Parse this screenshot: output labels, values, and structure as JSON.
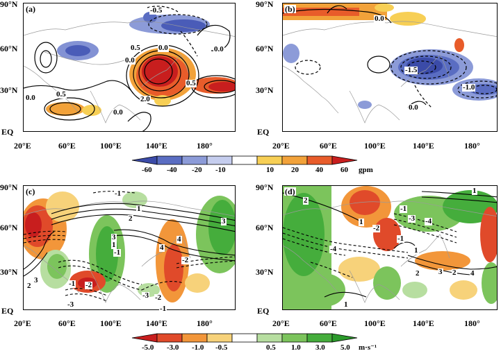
{
  "panels": [
    {
      "id": "a",
      "label": "(a)",
      "lat_ticks": [
        "90°N",
        "60°N",
        "30°N",
        "EQ"
      ],
      "lon_ticks": [
        "20°E",
        "60°E",
        "100°E",
        "140°E",
        "180°"
      ],
      "contour_labels": [
        "-0.5",
        "0.5",
        "0.0",
        "0.0",
        "0.0",
        "0.5",
        "0.0",
        "0.5",
        "2.0",
        "0.0"
      ]
    },
    {
      "id": "b",
      "label": "(b)",
      "lat_ticks": [
        "90°N",
        "60°N",
        "30°N",
        "EQ"
      ],
      "lon_ticks": [
        "20°E",
        "60°E",
        "100°E",
        "140°E",
        "180°"
      ],
      "contour_labels": [
        "0.0",
        "-1.5",
        "-1.0",
        "0.0"
      ]
    },
    {
      "id": "c",
      "label": "(c)",
      "lat_ticks": [
        "90°N",
        "60°N",
        "30°N",
        "EQ"
      ],
      "lon_ticks": [
        "20°E",
        "60°E",
        "100°E",
        "140°E",
        "180°"
      ],
      "contour_labels": [
        "-1",
        "1",
        "2",
        "3",
        "3",
        "1",
        "-1",
        "4",
        "4",
        "-2",
        "2",
        "3",
        "-1",
        "-2",
        "-3",
        "-3",
        "-2",
        "-1"
      ]
    },
    {
      "id": "d",
      "label": "(d)",
      "lat_ticks": [
        "90°N",
        "60°N",
        "30°N",
        "EQ"
      ],
      "lon_ticks": [
        "20°E",
        "60°E",
        "100°E",
        "140°E",
        "180°"
      ],
      "contour_labels": [
        "2",
        "1",
        "-1",
        "-3",
        "-4",
        "1",
        "-2",
        "-4",
        "-1",
        "1",
        "2",
        "3",
        "2",
        "4",
        "1"
      ]
    }
  ],
  "colorbars": [
    {
      "id": "gpm",
      "ticks": [
        "-60",
        "-40",
        "-20",
        "-10",
        "10",
        "20",
        "40",
        "60"
      ],
      "unit": "gpm",
      "colors": [
        "#3b4ba8",
        "#5a6dc2",
        "#8c9bd8",
        "#c5cdee",
        "#ffffff",
        "#f7cf55",
        "#f2a23a",
        "#e85c2a",
        "#c81e1e"
      ]
    },
    {
      "id": "wind",
      "ticks": [
        "-5.0",
        "-3.0",
        "-1.0",
        "-0.5",
        "0.5",
        "1.0",
        "3.0",
        "5.0"
      ],
      "unit": "m·s⁻¹",
      "colors": [
        "#c81e1e",
        "#e04a2a",
        "#f2963a",
        "#f7d27a",
        "#ffffff",
        "#b7dea0",
        "#7cc45c",
        "#45ad3c",
        "#2b9a2b"
      ]
    }
  ]
}
